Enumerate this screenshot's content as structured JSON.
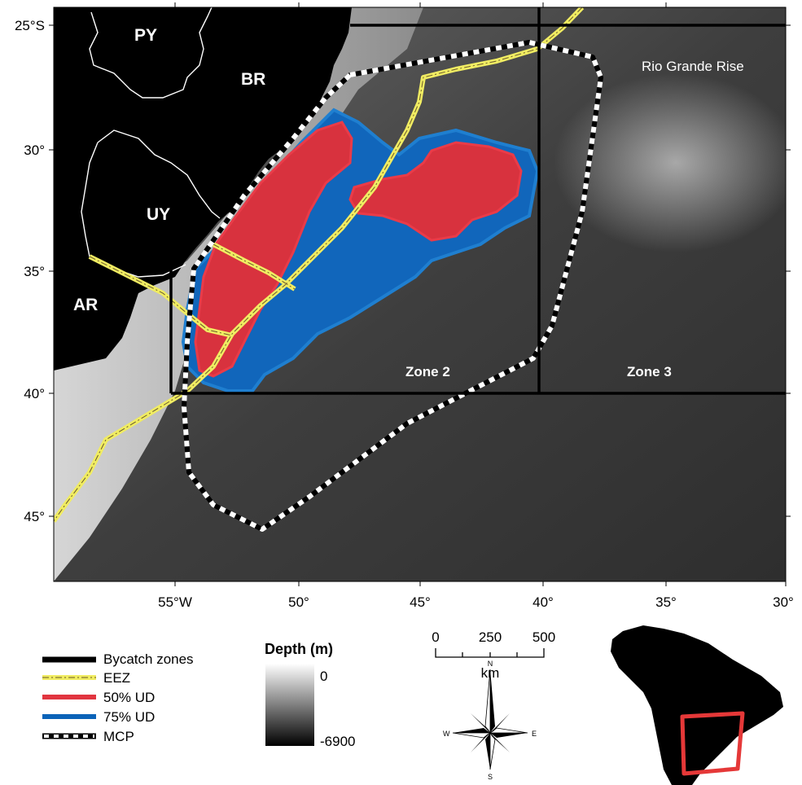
{
  "map": {
    "lat_labels": [
      "25°S",
      "30°",
      "35°",
      "40°",
      "45°"
    ],
    "lon_labels": [
      "55°W",
      "50°",
      "45°",
      "40°",
      "35°",
      "30°"
    ],
    "countries": [
      "PY",
      "BR",
      "UY",
      "AR"
    ],
    "feature_label": "Rio Grande Rise",
    "zone_labels": [
      "Zone 2",
      "Zone 3"
    ]
  },
  "legend": {
    "items": [
      "Bycatch zones",
      "EEZ",
      "50% UD",
      "75% UD",
      "MCP"
    ],
    "colors": {
      "bycatch": "#000000",
      "eez": "#f2ef5a",
      "ud50": "#e1353f",
      "ud75": "#0b63b8",
      "mcp": "#ffffff"
    }
  },
  "depth": {
    "title": "Depth (m)",
    "max": "0",
    "min": "-6900"
  },
  "scalebar": {
    "ticks": [
      "0",
      "250",
      "500"
    ],
    "unit": "km"
  },
  "compass": {
    "n": "N",
    "s": "S",
    "e": "E",
    "w": "W"
  }
}
